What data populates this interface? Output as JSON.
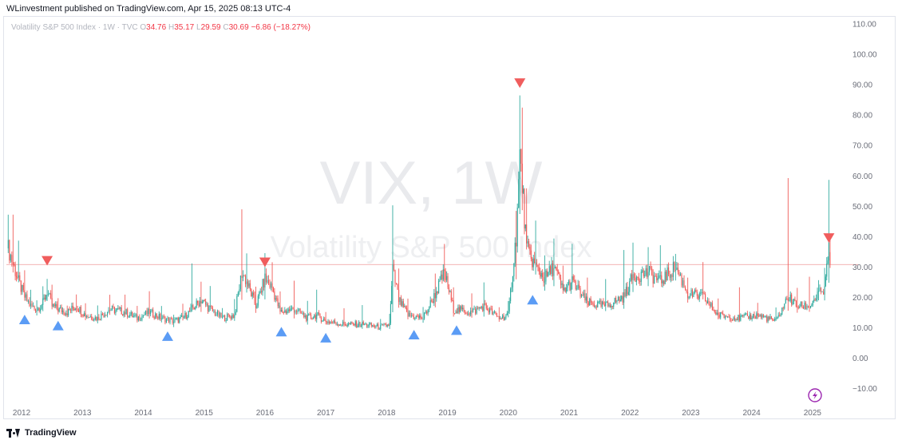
{
  "header": {
    "published_by": "WLinvestment published on TradingView.com, Apr 15, 2025 08:13 UTC-4"
  },
  "legend": {
    "symbol": "Volatility S&P 500 Index · 1W · TVC",
    "open_label": "O",
    "open": "34.76",
    "high_label": "H",
    "high": "35.17",
    "low_label": "L",
    "low": "29.59",
    "close_label": "C",
    "close": "30.69",
    "change": "−6.86 (−18.27%)"
  },
  "watermark": {
    "line1": "VIX, 1W",
    "line2": "Volatility S&P 500 Index"
  },
  "footer": {
    "brand": "TradingView"
  },
  "icons": {
    "bottom_right": "lightning-bolt-icon",
    "footer_logo": "tradingview-logo-icon"
  },
  "colors": {
    "up": "#26a69a",
    "down": "#ef5350",
    "price_line": "#ef9a9a",
    "marker_up": "#5b9cf5",
    "marker_down": "#f05d5d",
    "bolt": "#9c27b0"
  },
  "chart_data": {
    "type": "candlestick",
    "timeframe": "1W",
    "y_ticks": [
      "110.00",
      "100.00",
      "90.00",
      "80.00",
      "70.00",
      "60.00",
      "50.00",
      "40.00",
      "30.00",
      "20.00",
      "10.00",
      "0.00",
      "−10.00"
    ],
    "y_tick_values": [
      110,
      100,
      90,
      80,
      70,
      60,
      50,
      40,
      30,
      20,
      10,
      0,
      -10
    ],
    "x_ticks": [
      "2012",
      "2013",
      "2014",
      "2015",
      "2016",
      "2017",
      "2018",
      "2019",
      "2020",
      "2021",
      "2022",
      "2023",
      "2024",
      "2025"
    ],
    "x_tick_years": [
      2012,
      2013,
      2014,
      2015,
      2016,
      2017,
      2018,
      2019,
      2020,
      2021,
      2022,
      2023,
      2024,
      2025
    ],
    "ylim": [
      -15,
      112
    ],
    "xlim": [
      2011.75,
      2025.75
    ],
    "last_price": 30.69,
    "series": [
      {
        "date": 2011.78,
        "high": 43,
        "low": 33,
        "close": 36
      },
      {
        "date": 2011.86,
        "high": 47,
        "low": 27,
        "close": 31
      },
      {
        "date": 2011.95,
        "high": 38,
        "low": 22,
        "close": 25
      },
      {
        "date": 2012.05,
        "high": 27,
        "low": 18,
        "close": 20
      },
      {
        "date": 2012.15,
        "high": 22,
        "low": 16,
        "close": 17
      },
      {
        "date": 2012.25,
        "high": 19,
        "low": 14,
        "close": 16
      },
      {
        "date": 2012.35,
        "high": 22,
        "low": 15,
        "close": 18
      },
      {
        "date": 2012.42,
        "high": 27,
        "low": 18,
        "close": 22
      },
      {
        "date": 2012.5,
        "high": 21,
        "low": 16,
        "close": 17
      },
      {
        "date": 2012.6,
        "high": 19,
        "low": 14,
        "close": 16
      },
      {
        "date": 2012.75,
        "high": 18,
        "low": 14,
        "close": 15
      },
      {
        "date": 2012.9,
        "high": 22,
        "low": 15,
        "close": 17
      },
      {
        "date": 2013.05,
        "high": 17,
        "low": 12,
        "close": 14
      },
      {
        "date": 2013.25,
        "high": 17,
        "low": 12,
        "close": 13
      },
      {
        "date": 2013.45,
        "high": 21,
        "low": 13,
        "close": 16
      },
      {
        "date": 2013.7,
        "high": 21,
        "low": 13,
        "close": 15
      },
      {
        "date": 2013.9,
        "high": 16,
        "low": 12,
        "close": 13
      },
      {
        "date": 2014.1,
        "high": 21,
        "low": 13,
        "close": 15
      },
      {
        "date": 2014.3,
        "high": 17,
        "low": 12,
        "close": 13
      },
      {
        "date": 2014.5,
        "high": 14,
        "low": 10,
        "close": 12
      },
      {
        "date": 2014.65,
        "high": 17,
        "low": 11,
        "close": 13
      },
      {
        "date": 2014.8,
        "high": 31,
        "low": 14,
        "close": 16
      },
      {
        "date": 2014.95,
        "high": 25,
        "low": 14,
        "close": 19
      },
      {
        "date": 2015.1,
        "high": 23,
        "low": 14,
        "close": 16
      },
      {
        "date": 2015.3,
        "high": 16,
        "low": 12,
        "close": 13
      },
      {
        "date": 2015.5,
        "high": 19,
        "low": 12,
        "close": 14
      },
      {
        "date": 2015.62,
        "high": 53,
        "low": 13,
        "close": 28
      },
      {
        "date": 2015.7,
        "high": 34,
        "low": 20,
        "close": 25
      },
      {
        "date": 2015.85,
        "high": 23,
        "low": 14,
        "close": 17
      },
      {
        "date": 2016.0,
        "high": 32,
        "low": 18,
        "close": 26
      },
      {
        "date": 2016.12,
        "high": 30,
        "low": 20,
        "close": 23
      },
      {
        "date": 2016.25,
        "high": 20,
        "low": 13,
        "close": 15
      },
      {
        "date": 2016.48,
        "high": 26,
        "low": 13,
        "close": 16
      },
      {
        "date": 2016.7,
        "high": 18,
        "low": 11,
        "close": 13
      },
      {
        "date": 2016.85,
        "high": 23,
        "low": 12,
        "close": 14
      },
      {
        "date": 2017.0,
        "high": 14,
        "low": 11,
        "close": 12
      },
      {
        "date": 2017.3,
        "high": 16,
        "low": 10,
        "close": 11
      },
      {
        "date": 2017.6,
        "high": 17,
        "low": 9,
        "close": 11
      },
      {
        "date": 2017.9,
        "high": 12,
        "low": 9,
        "close": 10
      },
      {
        "date": 2018.05,
        "high": 14,
        "low": 9,
        "close": 11
      },
      {
        "date": 2018.1,
        "high": 50,
        "low": 11,
        "close": 29
      },
      {
        "date": 2018.2,
        "high": 26,
        "low": 16,
        "close": 19
      },
      {
        "date": 2018.35,
        "high": 19,
        "low": 12,
        "close": 14
      },
      {
        "date": 2018.6,
        "high": 17,
        "low": 11,
        "close": 13
      },
      {
        "date": 2018.8,
        "high": 28,
        "low": 14,
        "close": 21
      },
      {
        "date": 2018.95,
        "high": 36,
        "low": 20,
        "close": 28
      },
      {
        "date": 2019.1,
        "high": 20,
        "low": 14,
        "close": 16
      },
      {
        "date": 2019.4,
        "high": 21,
        "low": 12,
        "close": 15
      },
      {
        "date": 2019.6,
        "high": 24,
        "low": 13,
        "close": 17
      },
      {
        "date": 2019.85,
        "high": 16,
        "low": 11,
        "close": 13
      },
      {
        "date": 2020.0,
        "high": 18,
        "low": 12,
        "close": 14
      },
      {
        "date": 2020.13,
        "high": 49,
        "low": 14,
        "close": 40
      },
      {
        "date": 2020.19,
        "high": 85,
        "low": 40,
        "close": 66
      },
      {
        "date": 2020.23,
        "high": 77,
        "low": 45,
        "close": 57
      },
      {
        "date": 2020.3,
        "high": 48,
        "low": 33,
        "close": 36
      },
      {
        "date": 2020.45,
        "high": 44,
        "low": 24,
        "close": 30
      },
      {
        "date": 2020.6,
        "high": 34,
        "low": 22,
        "close": 26
      },
      {
        "date": 2020.75,
        "high": 41,
        "low": 24,
        "close": 30
      },
      {
        "date": 2020.9,
        "high": 28,
        "low": 20,
        "close": 22
      },
      {
        "date": 2021.05,
        "high": 37,
        "low": 20,
        "close": 25
      },
      {
        "date": 2021.3,
        "high": 24,
        "low": 15,
        "close": 18
      },
      {
        "date": 2021.6,
        "high": 25,
        "low": 15,
        "close": 17
      },
      {
        "date": 2021.9,
        "high": 35,
        "low": 16,
        "close": 20
      },
      {
        "date": 2022.05,
        "high": 39,
        "low": 19,
        "close": 27
      },
      {
        "date": 2022.3,
        "high": 36,
        "low": 22,
        "close": 28
      },
      {
        "date": 2022.5,
        "high": 35,
        "low": 22,
        "close": 25
      },
      {
        "date": 2022.75,
        "high": 35,
        "low": 24,
        "close": 30
      },
      {
        "date": 2022.95,
        "high": 25,
        "low": 19,
        "close": 21
      },
      {
        "date": 2023.2,
        "high": 30,
        "low": 17,
        "close": 20
      },
      {
        "date": 2023.45,
        "high": 19,
        "low": 12,
        "close": 14
      },
      {
        "date": 2023.8,
        "high": 23,
        "low": 12,
        "close": 13
      },
      {
        "date": 2024.1,
        "high": 17,
        "low": 12,
        "close": 14
      },
      {
        "date": 2024.4,
        "high": 16,
        "low": 11,
        "close": 12
      },
      {
        "date": 2024.6,
        "high": 65,
        "low": 12,
        "close": 20
      },
      {
        "date": 2024.75,
        "high": 24,
        "low": 14,
        "close": 17
      },
      {
        "date": 2024.95,
        "high": 28,
        "low": 14,
        "close": 17
      },
      {
        "date": 2025.1,
        "high": 24,
        "low": 15,
        "close": 21
      },
      {
        "date": 2025.2,
        "high": 29,
        "low": 18,
        "close": 22
      },
      {
        "date": 2025.27,
        "high": 60,
        "low": 21,
        "close": 37
      },
      {
        "date": 2025.29,
        "high": 35.17,
        "low": 29.59,
        "close": 30.69
      }
    ],
    "markers": [
      {
        "type": "up",
        "date": 2012.05,
        "price": 12.5
      },
      {
        "type": "up",
        "date": 2012.6,
        "price": 10.5
      },
      {
        "type": "up",
        "date": 2014.4,
        "price": 7
      },
      {
        "type": "up",
        "date": 2016.27,
        "price": 8.5
      },
      {
        "type": "up",
        "date": 2017.0,
        "price": 6.5
      },
      {
        "type": "up",
        "date": 2018.45,
        "price": 7.5
      },
      {
        "type": "up",
        "date": 2019.15,
        "price": 9
      },
      {
        "type": "up",
        "date": 2020.4,
        "price": 19
      },
      {
        "type": "down",
        "date": 2012.42,
        "price": 32
      },
      {
        "type": "down",
        "date": 2016.0,
        "price": 31.5
      },
      {
        "type": "down",
        "date": 2020.19,
        "price": 90.5
      },
      {
        "type": "down",
        "date": 2025.27,
        "price": 39.5
      }
    ]
  }
}
